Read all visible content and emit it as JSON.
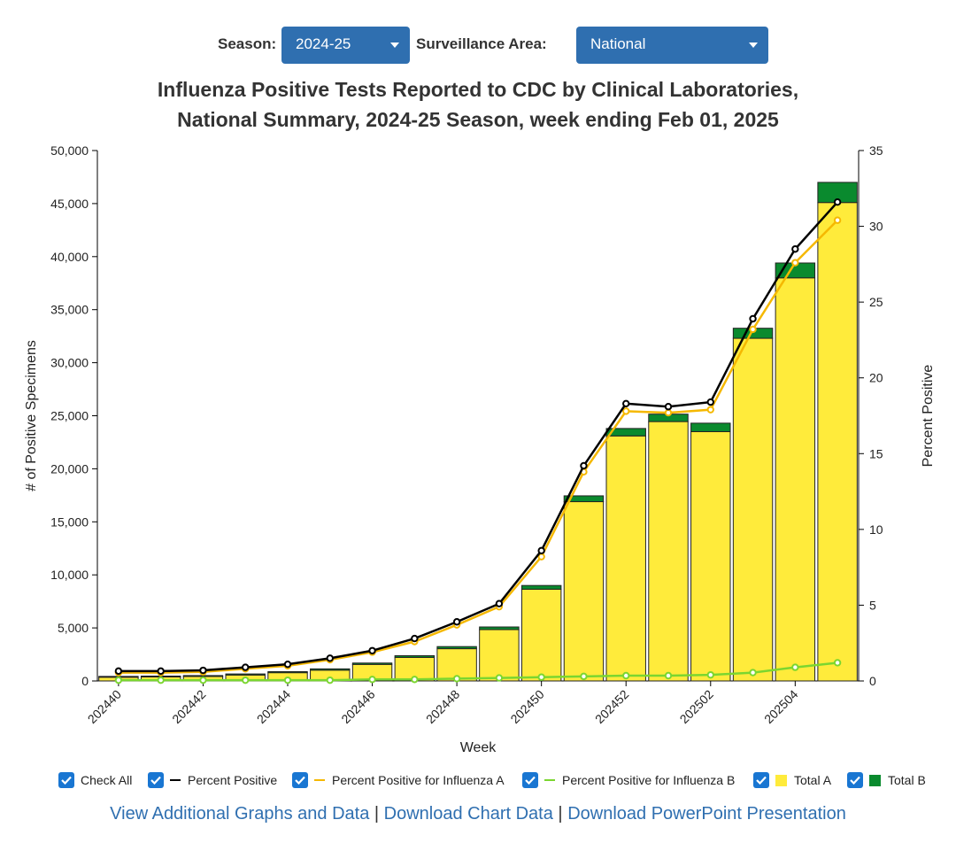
{
  "controls": {
    "season_label": "Season:",
    "season_value": "2024-25",
    "area_label": "Surveillance Area:",
    "area_value": "National"
  },
  "title_line1": "Influenza Positive Tests Reported to CDC by Clinical Laboratories,",
  "title_line2": "National Summary, 2024-25 Season, week ending Feb 01, 2025",
  "chart_data": {
    "type": "bar",
    "stacked": true,
    "xlabel": "Week",
    "ylabel": "# of Positive Specimens",
    "y2label": "Percent Positive",
    "ylim": [
      0,
      50000
    ],
    "y2lim": [
      0,
      35
    ],
    "yticks": [
      "0",
      "5,000",
      "10,000",
      "15,000",
      "20,000",
      "25,000",
      "30,000",
      "35,000",
      "40,000",
      "45,000",
      "50,000"
    ],
    "y2ticks": [
      "0",
      "5",
      "10",
      "15",
      "20",
      "25",
      "30",
      "35"
    ],
    "categories": [
      "202440",
      "202441",
      "202442",
      "202443",
      "202444",
      "202445",
      "202446",
      "202447",
      "202448",
      "202449",
      "202450",
      "202451",
      "202452",
      "202501",
      "202502",
      "202503",
      "202504",
      "202505"
    ],
    "xtick_labels": [
      "202440",
      "202442",
      "202444",
      "202446",
      "202448",
      "202450",
      "202452",
      "202502",
      "202504"
    ],
    "series": [
      {
        "name": "Total A",
        "kind": "bar",
        "color": "#ffeb3b",
        "values": [
          350,
          380,
          420,
          560,
          780,
          1020,
          1560,
          2220,
          3040,
          4840,
          8650,
          16900,
          23100,
          24450,
          23500,
          32300,
          38000,
          45100
        ]
      },
      {
        "name": "Total B",
        "kind": "bar",
        "color": "#0a8a2e",
        "values": [
          80,
          80,
          90,
          100,
          100,
          120,
          130,
          160,
          200,
          250,
          350,
          550,
          700,
          700,
          800,
          950,
          1400,
          1900
        ]
      },
      {
        "name": "Percent Positive",
        "kind": "line",
        "axis": "right",
        "color": "#000000",
        "values": [
          0.65,
          0.65,
          0.7,
          0.9,
          1.1,
          1.5,
          2.0,
          2.8,
          3.9,
          5.1,
          8.6,
          14.2,
          18.3,
          18.1,
          18.4,
          23.9,
          28.5,
          31.6
        ]
      },
      {
        "name": "Percent Positive for Influenza A",
        "kind": "line",
        "axis": "right",
        "color": "#f5b800",
        "values": [
          0.55,
          0.55,
          0.6,
          0.8,
          1.0,
          1.4,
          1.9,
          2.6,
          3.7,
          4.9,
          8.2,
          13.8,
          17.8,
          17.7,
          17.9,
          23.2,
          27.6,
          30.4
        ]
      },
      {
        "name": "Percent Positive for Influenza B",
        "kind": "line",
        "axis": "right",
        "color": "#7bd630",
        "values": [
          0.05,
          0.05,
          0.05,
          0.05,
          0.05,
          0.05,
          0.1,
          0.1,
          0.15,
          0.2,
          0.25,
          0.3,
          0.35,
          0.35,
          0.4,
          0.55,
          0.9,
          1.2
        ]
      }
    ]
  },
  "legend": {
    "check_all": "Check All",
    "items": [
      "Percent Positive",
      "Percent Positive for Influenza A",
      "Percent Positive for Influenza B",
      "Total A",
      "Total B"
    ]
  },
  "links": {
    "view": "View Additional Graphs and Data",
    "sep1": "|",
    "download_data": "Download Chart Data",
    "sep2": "|",
    "download_ppt": "Download PowerPoint Presentation"
  }
}
